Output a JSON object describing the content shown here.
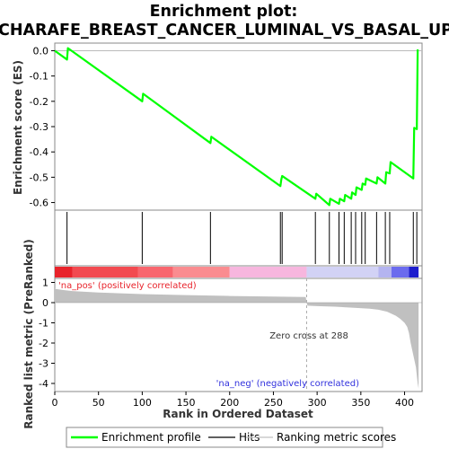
{
  "chart_data": {
    "type": "line",
    "title_line1": "Enrichment plot:",
    "title_line2": "CHARAFE_BREAST_CANCER_LUMINAL_VS_BASAL_UP",
    "ylabel_top": "Enrichment score (ES)",
    "ylabel_bottom": "Ranked list metric (PreRanked)",
    "xlabel": "Rank in Ordered Dataset",
    "xlim": [
      0,
      420
    ],
    "es_ylim": [
      -0.63,
      0.03
    ],
    "metric_ylim": [
      -4.4,
      1.2
    ],
    "x_ticks": [
      "0",
      "50",
      "100",
      "150",
      "200",
      "250",
      "300",
      "350",
      "400"
    ],
    "es_ticks": [
      "0.0",
      "-0.1",
      "-0.2",
      "-0.3",
      "-0.4",
      "-0.5",
      "-0.6"
    ],
    "metric_ticks": [
      "1",
      "0",
      "-1",
      "-2",
      "-3",
      "-4"
    ],
    "es_curve": {
      "name": "Enrichment profile",
      "color": "#00ff00",
      "x": [
        0,
        14,
        15,
        100,
        101,
        178,
        179,
        258,
        259,
        260,
        298,
        299,
        314,
        315,
        325,
        326,
        331,
        332,
        339,
        340,
        344,
        345,
        351,
        352,
        355,
        356,
        368,
        369,
        378,
        379,
        383,
        384,
        410,
        411,
        414,
        415
      ],
      "y": [
        0.0,
        -0.035,
        0.01,
        -0.2,
        -0.17,
        -0.365,
        -0.34,
        -0.535,
        -0.51,
        -0.495,
        -0.585,
        -0.565,
        -0.61,
        -0.585,
        -0.605,
        -0.585,
        -0.595,
        -0.57,
        -0.585,
        -0.56,
        -0.57,
        -0.54,
        -0.55,
        -0.525,
        -0.53,
        -0.505,
        -0.525,
        -0.5,
        -0.525,
        -0.48,
        -0.485,
        -0.44,
        -0.505,
        -0.305,
        -0.31,
        0.005
      ]
    },
    "hits": {
      "name": "Hits",
      "color": "#000000",
      "x": [
        14,
        100,
        178,
        258,
        260,
        298,
        314,
        325,
        331,
        339,
        344,
        351,
        355,
        368,
        378,
        383,
        410,
        414
      ]
    },
    "metric": {
      "name": "Ranking metric scores",
      "color": "#c0c0c0",
      "x": [
        0,
        1,
        10,
        20,
        50,
        100,
        150,
        200,
        250,
        287,
        288,
        289,
        300,
        320,
        340,
        360,
        370,
        380,
        385,
        390,
        395,
        400,
        403,
        405,
        407,
        409,
        411,
        413,
        415,
        416
      ],
      "y": [
        0.72,
        0.68,
        0.62,
        0.57,
        0.5,
        0.42,
        0.37,
        0.33,
        0.3,
        0.28,
        0.0,
        -0.15,
        -0.17,
        -0.2,
        -0.25,
        -0.3,
        -0.35,
        -0.45,
        -0.55,
        -0.65,
        -0.8,
        -1.0,
        -1.2,
        -1.5,
        -2.0,
        -2.4,
        -2.8,
        -3.2,
        -4.0,
        -4.25
      ]
    },
    "color_bar": {
      "segments": [
        {
          "from": 0,
          "to": 20,
          "color": "#e8232b"
        },
        {
          "from": 20,
          "to": 95,
          "color": "#f24a50"
        },
        {
          "from": 95,
          "to": 135,
          "color": "#f8666e"
        },
        {
          "from": 135,
          "to": 200,
          "color": "#fa8c90"
        },
        {
          "from": 200,
          "to": 288,
          "color": "#f7b6de"
        },
        {
          "from": 288,
          "to": 370,
          "color": "#d2d2f5"
        },
        {
          "from": 370,
          "to": 385,
          "color": "#b4b4f0"
        },
        {
          "from": 385,
          "to": 405,
          "color": "#6b6bee"
        },
        {
          "from": 405,
          "to": 416,
          "color": "#1e1ecd"
        }
      ]
    },
    "zero_cross": 288,
    "annotations": {
      "pos": "'na_pos' (positively correlated)",
      "neg": "'na_neg' (negatively correlated)",
      "zero": "Zero cross at 288"
    },
    "colors": {
      "pos_text": "#e8232b",
      "neg_text": "#3030dd"
    },
    "legend": [
      {
        "label": "Enrichment profile",
        "color": "#00ff00"
      },
      {
        "label": "Hits",
        "color": "#000000"
      },
      {
        "label": "Ranking metric scores",
        "color": "#c0c0c0"
      }
    ]
  }
}
